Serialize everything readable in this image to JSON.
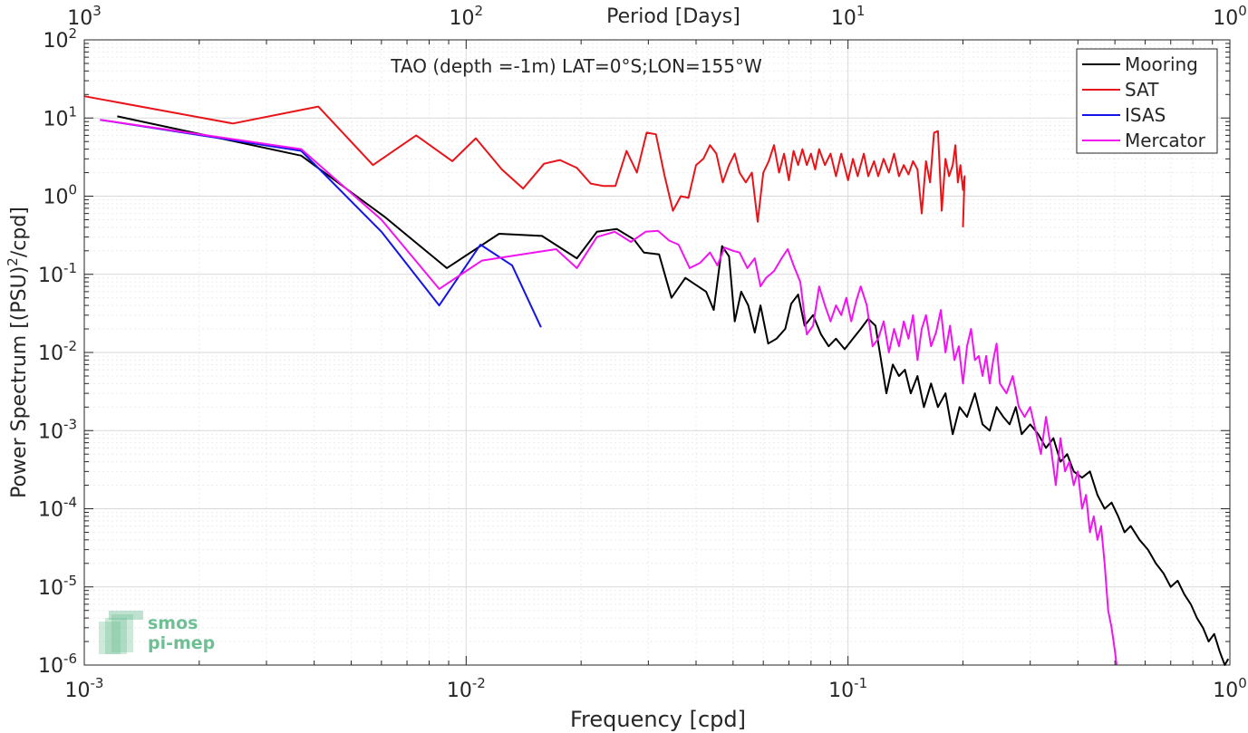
{
  "chart_data": {
    "type": "line",
    "title": "TAO (depth =-1m) LAT=0°S;LON=155°W",
    "xlabel": "Frequency [cpd]",
    "ylabel": "Power Spectrum [(PSU)",
    "ylabel_sup": "2",
    "ylabel_suffix": "/cpd]",
    "top_xlabel": "Period [Days]",
    "x_scale": "log",
    "y_scale": "log",
    "xlim": [
      0.001,
      1
    ],
    "ylim": [
      1e-06,
      100
    ],
    "grid": true,
    "legend_position": "top-right",
    "x_ticks": [
      {
        "value": 0.001,
        "base": "10",
        "exp": "-3"
      },
      {
        "value": 0.01,
        "base": "10",
        "exp": "-2"
      },
      {
        "value": 0.1,
        "base": "10",
        "exp": "-1"
      },
      {
        "value": 1,
        "base": "10",
        "exp": "0"
      }
    ],
    "y_ticks": [
      {
        "value": 1e-06,
        "base": "10",
        "exp": "-6"
      },
      {
        "value": 1e-05,
        "base": "10",
        "exp": "-5"
      },
      {
        "value": 0.0001,
        "base": "10",
        "exp": "-4"
      },
      {
        "value": 0.001,
        "base": "10",
        "exp": "-3"
      },
      {
        "value": 0.01,
        "base": "10",
        "exp": "-2"
      },
      {
        "value": 0.1,
        "base": "10",
        "exp": "-1"
      },
      {
        "value": 1,
        "base": "10",
        "exp": "0"
      },
      {
        "value": 10,
        "base": "10",
        "exp": "1"
      },
      {
        "value": 100,
        "base": "10",
        "exp": "2"
      }
    ],
    "top_ticks": [
      {
        "value": 0.001,
        "base": "10",
        "exp": "3"
      },
      {
        "value": 0.01,
        "base": "10",
        "exp": "2"
      },
      {
        "value": 0.1,
        "base": "10",
        "exp": "1"
      },
      {
        "value": 1,
        "base": "10",
        "exp": "0"
      }
    ],
    "series": [
      {
        "name": "Mooring",
        "color": "#000000",
        "points": [
          [
            0.00122,
            10.5
          ],
          [
            0.0037,
            3.3
          ],
          [
            0.0061,
            0.55
          ],
          [
            0.0089,
            0.12
          ],
          [
            0.0122,
            0.33
          ],
          [
            0.0158,
            0.31
          ],
          [
            0.0195,
            0.16
          ],
          [
            0.022,
            0.35
          ],
          [
            0.0248,
            0.38
          ],
          [
            0.0275,
            0.28
          ],
          [
            0.0292,
            0.19
          ],
          [
            0.032,
            0.18
          ],
          [
            0.0345,
            0.05
          ],
          [
            0.0375,
            0.09
          ],
          [
            0.0405,
            0.07
          ],
          [
            0.0425,
            0.06
          ],
          [
            0.0445,
            0.035
          ],
          [
            0.0468,
            0.23
          ],
          [
            0.0488,
            0.17
          ],
          [
            0.0505,
            0.025
          ],
          [
            0.0525,
            0.06
          ],
          [
            0.0548,
            0.04
          ],
          [
            0.057,
            0.018
          ],
          [
            0.059,
            0.04
          ],
          [
            0.0618,
            0.013
          ],
          [
            0.065,
            0.015
          ],
          [
            0.0685,
            0.02
          ],
          [
            0.071,
            0.042
          ],
          [
            0.074,
            0.055
          ],
          [
            0.077,
            0.022
          ],
          [
            0.081,
            0.03
          ],
          [
            0.085,
            0.017
          ],
          [
            0.089,
            0.012
          ],
          [
            0.093,
            0.015
          ],
          [
            0.098,
            0.011
          ],
          [
            0.103,
            0.015
          ],
          [
            0.108,
            0.02
          ],
          [
            0.113,
            0.027
          ],
          [
            0.118,
            0.022
          ],
          [
            0.122,
            0.008
          ],
          [
            0.126,
            0.003
          ],
          [
            0.131,
            0.007
          ],
          [
            0.136,
            0.005
          ],
          [
            0.141,
            0.006
          ],
          [
            0.146,
            0.003
          ],
          [
            0.152,
            0.005
          ],
          [
            0.158,
            0.002
          ],
          [
            0.165,
            0.004
          ],
          [
            0.172,
            0.002
          ],
          [
            0.18,
            0.003
          ],
          [
            0.188,
            0.0009
          ],
          [
            0.196,
            0.002
          ],
          [
            0.205,
            0.0015
          ],
          [
            0.215,
            0.003
          ],
          [
            0.225,
            0.0012
          ],
          [
            0.235,
            0.001
          ],
          [
            0.245,
            0.002
          ],
          [
            0.255,
            0.0015
          ],
          [
            0.265,
            0.0012
          ],
          [
            0.275,
            0.002
          ],
          [
            0.285,
            0.0009
          ],
          [
            0.3,
            0.0012
          ],
          [
            0.315,
            0.0009
          ],
          [
            0.33,
            0.0006
          ],
          [
            0.345,
            0.0008
          ],
          [
            0.36,
            0.0004
          ],
          [
            0.375,
            0.0005
          ],
          [
            0.39,
            0.0003
          ],
          [
            0.41,
            0.00025
          ],
          [
            0.43,
            0.0003
          ],
          [
            0.45,
            0.00015
          ],
          [
            0.47,
            0.0001
          ],
          [
            0.49,
            0.00012
          ],
          [
            0.51,
            8e-05
          ],
          [
            0.53,
            5e-05
          ],
          [
            0.55,
            6e-05
          ],
          [
            0.58,
            4e-05
          ],
          [
            0.61,
            3e-05
          ],
          [
            0.64,
            2e-05
          ],
          [
            0.67,
            1.5e-05
          ],
          [
            0.7,
            1e-05
          ],
          [
            0.73,
            1.2e-05
          ],
          [
            0.76,
            8e-06
          ],
          [
            0.79,
            6e-06
          ],
          [
            0.82,
            4e-06
          ],
          [
            0.85,
            3e-06
          ],
          [
            0.88,
            2e-06
          ],
          [
            0.91,
            2.5e-06
          ],
          [
            0.94,
            1.5e-06
          ],
          [
            0.97,
            1e-06
          ],
          [
            0.99,
            1.2e-06
          ]
        ]
      },
      {
        "name": "SAT",
        "color": "#e8141a",
        "points": [
          [
            0.001,
            19
          ],
          [
            0.00245,
            8.5
          ],
          [
            0.0041,
            14
          ],
          [
            0.0057,
            2.5
          ],
          [
            0.0074,
            6.0
          ],
          [
            0.0092,
            2.8
          ],
          [
            0.0106,
            5.5
          ],
          [
            0.0124,
            2.2
          ],
          [
            0.0141,
            1.25
          ],
          [
            0.016,
            2.6
          ],
          [
            0.0176,
            2.9
          ],
          [
            0.0195,
            2.3
          ],
          [
            0.0212,
            1.45
          ],
          [
            0.0229,
            1.35
          ],
          [
            0.0246,
            1.35
          ],
          [
            0.0263,
            3.8
          ],
          [
            0.028,
            2.0
          ],
          [
            0.0297,
            6.5
          ],
          [
            0.0314,
            6.2
          ],
          [
            0.0331,
            1.8
          ],
          [
            0.0348,
            0.65
          ],
          [
            0.0365,
            1.0
          ],
          [
            0.0382,
            0.95
          ],
          [
            0.04,
            2.5
          ],
          [
            0.0418,
            3.0
          ],
          [
            0.0435,
            4.5
          ],
          [
            0.0452,
            3.5
          ],
          [
            0.047,
            1.5
          ],
          [
            0.0488,
            2.5
          ],
          [
            0.0505,
            3.5
          ],
          [
            0.052,
            2.0
          ],
          [
            0.054,
            1.5
          ],
          [
            0.056,
            2.0
          ],
          [
            0.058,
            0.47
          ],
          [
            0.06,
            2.0
          ],
          [
            0.062,
            2.8
          ],
          [
            0.064,
            4.5
          ],
          [
            0.066,
            2.0
          ],
          [
            0.068,
            3.5
          ],
          [
            0.07,
            1.6
          ],
          [
            0.072,
            3.8
          ],
          [
            0.074,
            2.5
          ],
          [
            0.076,
            4.0
          ],
          [
            0.078,
            2.5
          ],
          [
            0.08,
            3.5
          ],
          [
            0.082,
            2.2
          ],
          [
            0.084,
            4.0
          ],
          [
            0.087,
            2.5
          ],
          [
            0.09,
            3.5
          ],
          [
            0.093,
            1.8
          ],
          [
            0.096,
            3.5
          ],
          [
            0.1,
            1.6
          ],
          [
            0.103,
            3.0
          ],
          [
            0.106,
            1.8
          ],
          [
            0.11,
            3.5
          ],
          [
            0.113,
            1.8
          ],
          [
            0.117,
            2.8
          ],
          [
            0.12,
            1.8
          ],
          [
            0.124,
            3.0
          ],
          [
            0.128,
            2.0
          ],
          [
            0.132,
            3.5
          ],
          [
            0.136,
            1.8
          ],
          [
            0.14,
            2.5
          ],
          [
            0.144,
            1.9
          ],
          [
            0.148,
            2.8
          ],
          [
            0.152,
            2.2
          ],
          [
            0.156,
            0.6
          ],
          [
            0.16,
            2.8
          ],
          [
            0.164,
            1.5
          ],
          [
            0.168,
            6.5
          ],
          [
            0.172,
            6.8
          ],
          [
            0.176,
            0.65
          ],
          [
            0.18,
            3.0
          ],
          [
            0.184,
            1.8
          ],
          [
            0.188,
            2.5
          ],
          [
            0.191,
            4.5
          ],
          [
            0.194,
            1.5
          ],
          [
            0.197,
            2.5
          ],
          [
            0.2,
            1.2
          ],
          [
            0.202,
            1.8
          ],
          [
            0.2,
            0.4
          ]
        ]
      },
      {
        "name": "ISAS",
        "color": "#1414e6",
        "points": [
          [
            0.0011,
            9.5
          ],
          [
            0.0037,
            3.8
          ],
          [
            0.006,
            0.35
          ],
          [
            0.0085,
            0.04
          ],
          [
            0.0109,
            0.24
          ],
          [
            0.0132,
            0.13
          ],
          [
            0.0157,
            0.021
          ]
        ]
      },
      {
        "name": "Mercator",
        "color": "#f014f0",
        "points": [
          [
            0.0011,
            9.5
          ],
          [
            0.0037,
            4.0
          ],
          [
            0.006,
            0.5
          ],
          [
            0.0085,
            0.065
          ],
          [
            0.011,
            0.15
          ],
          [
            0.014,
            0.18
          ],
          [
            0.0172,
            0.21
          ],
          [
            0.0195,
            0.12
          ],
          [
            0.022,
            0.3
          ],
          [
            0.0245,
            0.35
          ],
          [
            0.027,
            0.26
          ],
          [
            0.0295,
            0.35
          ],
          [
            0.0318,
            0.36
          ],
          [
            0.034,
            0.27
          ],
          [
            0.036,
            0.24
          ],
          [
            0.0385,
            0.12
          ],
          [
            0.041,
            0.14
          ],
          [
            0.0435,
            0.19
          ],
          [
            0.0455,
            0.13
          ],
          [
            0.0475,
            0.22
          ],
          [
            0.05,
            0.2
          ],
          [
            0.052,
            0.19
          ],
          [
            0.0545,
            0.12
          ],
          [
            0.057,
            0.16
          ],
          [
            0.059,
            0.07
          ],
          [
            0.061,
            0.09
          ],
          [
            0.064,
            0.11
          ],
          [
            0.067,
            0.16
          ],
          [
            0.0695,
            0.21
          ],
          [
            0.072,
            0.13
          ],
          [
            0.075,
            0.08
          ],
          [
            0.078,
            0.017
          ],
          [
            0.081,
            0.022
          ],
          [
            0.084,
            0.07
          ],
          [
            0.087,
            0.04
          ],
          [
            0.09,
            0.025
          ],
          [
            0.093,
            0.04
          ],
          [
            0.096,
            0.03
          ],
          [
            0.099,
            0.05
          ],
          [
            0.102,
            0.025
          ],
          [
            0.105,
            0.045
          ],
          [
            0.108,
            0.07
          ],
          [
            0.112,
            0.04
          ],
          [
            0.116,
            0.012
          ],
          [
            0.12,
            0.015
          ],
          [
            0.124,
            0.025
          ],
          [
            0.128,
            0.01
          ],
          [
            0.132,
            0.02
          ],
          [
            0.136,
            0.012
          ],
          [
            0.14,
            0.025
          ],
          [
            0.144,
            0.015
          ],
          [
            0.148,
            0.03
          ],
          [
            0.152,
            0.008
          ],
          [
            0.156,
            0.02
          ],
          [
            0.16,
            0.03
          ],
          [
            0.165,
            0.012
          ],
          [
            0.17,
            0.018
          ],
          [
            0.175,
            0.035
          ],
          [
            0.18,
            0.01
          ],
          [
            0.185,
            0.022
          ],
          [
            0.19,
            0.008
          ],
          [
            0.195,
            0.012
          ],
          [
            0.2,
            0.004
          ],
          [
            0.205,
            0.012
          ],
          [
            0.21,
            0.02
          ],
          [
            0.215,
            0.008
          ],
          [
            0.22,
            0.009
          ],
          [
            0.225,
            0.005
          ],
          [
            0.23,
            0.009
          ],
          [
            0.235,
            0.004
          ],
          [
            0.24,
            0.008
          ],
          [
            0.245,
            0.013
          ],
          [
            0.25,
            0.004
          ],
          [
            0.26,
            0.003
          ],
          [
            0.27,
            0.005
          ],
          [
            0.28,
            0.002
          ],
          [
            0.29,
            0.0015
          ],
          [
            0.3,
            0.002
          ],
          [
            0.31,
            0.001
          ],
          [
            0.32,
            0.0005
          ],
          [
            0.33,
            0.0015
          ],
          [
            0.34,
            0.0006
          ],
          [
            0.35,
            0.0002
          ],
          [
            0.36,
            0.0008
          ],
          [
            0.37,
            0.0003
          ],
          [
            0.38,
            0.0004
          ],
          [
            0.39,
            0.0002
          ],
          [
            0.4,
            0.0003
          ],
          [
            0.41,
            0.0001
          ],
          [
            0.42,
            0.00015
          ],
          [
            0.43,
            5e-05
          ],
          [
            0.44,
            8e-05
          ],
          [
            0.45,
            4e-05
          ],
          [
            0.46,
            6e-05
          ],
          [
            0.47,
            2e-05
          ],
          [
            0.48,
            5e-06
          ],
          [
            0.49,
            3e-06
          ],
          [
            0.5,
            1.5e-06
          ],
          [
            0.505,
            1e-06
          ]
        ]
      }
    ]
  },
  "logo": {
    "line1": "smos",
    "line2": "pi-mep",
    "color": "#6fbf95"
  }
}
